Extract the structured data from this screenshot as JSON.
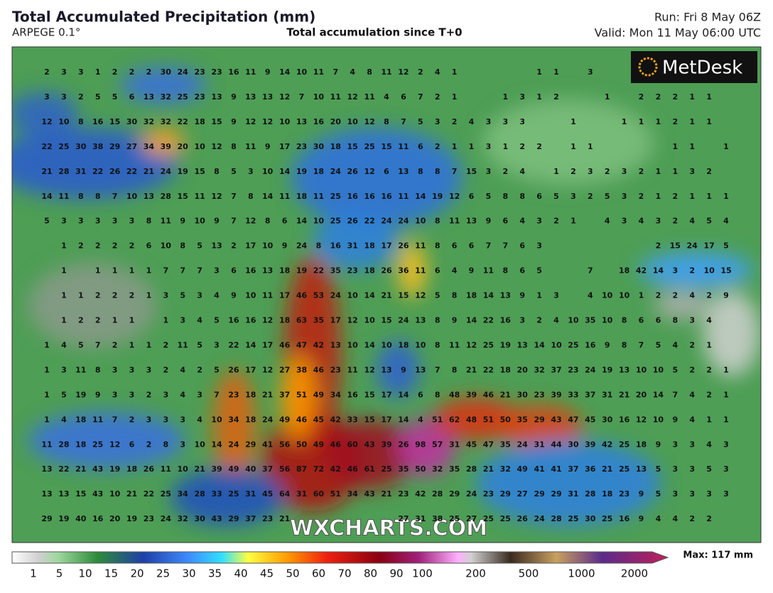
{
  "header": {
    "title": "Total Accumulated Precipitation (mm)",
    "model": "ARPEGE 0.1°",
    "subtitle": "Total accumulation since T+0",
    "run": "Run: Fri 8 May 06Z",
    "valid": "Valid: Mon 11 May 06:00 UTC"
  },
  "logo": "MetDesk",
  "watermark": "WXCHARTS.COM",
  "grid": {
    "rows": [
      [
        2,
        3,
        3,
        1,
        2,
        2,
        2,
        30,
        24,
        23,
        23,
        16,
        11,
        9,
        14,
        10,
        11,
        7,
        4,
        8,
        11,
        12,
        2,
        4,
        1,
        null,
        null,
        null,
        null,
        1,
        1,
        null,
        3,
        null,
        null,
        null,
        null,
        null,
        null,
        null,
        null
      ],
      [
        3,
        3,
        2,
        5,
        5,
        6,
        13,
        32,
        25,
        23,
        13,
        9,
        13,
        13,
        12,
        7,
        10,
        11,
        12,
        11,
        4,
        6,
        7,
        2,
        1,
        null,
        null,
        1,
        3,
        1,
        2,
        null,
        null,
        1,
        null,
        2,
        2,
        2,
        1,
        1,
        null
      ],
      [
        12,
        10,
        8,
        16,
        15,
        30,
        32,
        32,
        22,
        18,
        15,
        9,
        12,
        12,
        10,
        13,
        16,
        20,
        10,
        12,
        8,
        7,
        5,
        3,
        2,
        4,
        3,
        3,
        3,
        null,
        null,
        1,
        null,
        null,
        1,
        1,
        1,
        2,
        1,
        1,
        null
      ],
      [
        22,
        25,
        30,
        38,
        29,
        27,
        34,
        39,
        20,
        10,
        12,
        8,
        11,
        9,
        17,
        23,
        30,
        18,
        15,
        25,
        15,
        11,
        6,
        2,
        1,
        1,
        3,
        1,
        2,
        2,
        null,
        1,
        1,
        null,
        null,
        null,
        null,
        1,
        1,
        null,
        1
      ],
      [
        21,
        28,
        31,
        22,
        26,
        22,
        21,
        24,
        19,
        15,
        8,
        5,
        3,
        10,
        14,
        19,
        18,
        24,
        26,
        12,
        6,
        13,
        8,
        8,
        7,
        15,
        3,
        2,
        4,
        null,
        1,
        2,
        3,
        2,
        3,
        2,
        1,
        1,
        3,
        2,
        null
      ],
      [
        14,
        11,
        8,
        8,
        7,
        10,
        13,
        28,
        15,
        11,
        12,
        7,
        8,
        14,
        11,
        18,
        11,
        25,
        16,
        16,
        16,
        11,
        14,
        19,
        12,
        6,
        5,
        8,
        8,
        6,
        5,
        3,
        2,
        5,
        3,
        2,
        1,
        2,
        1,
        1,
        1
      ],
      [
        5,
        3,
        3,
        3,
        3,
        3,
        8,
        11,
        9,
        10,
        9,
        7,
        12,
        8,
        6,
        14,
        10,
        25,
        26,
        22,
        24,
        24,
        10,
        8,
        11,
        13,
        9,
        6,
        4,
        3,
        2,
        1,
        null,
        4,
        3,
        4,
        3,
        2,
        4,
        5,
        4
      ],
      [
        null,
        1,
        2,
        2,
        2,
        2,
        6,
        10,
        8,
        5,
        13,
        2,
        17,
        10,
        9,
        24,
        8,
        16,
        31,
        18,
        17,
        26,
        11,
        8,
        6,
        6,
        7,
        7,
        6,
        3,
        null,
        null,
        null,
        null,
        null,
        null,
        2,
        15,
        24,
        17,
        5
      ],
      [
        null,
        1,
        null,
        1,
        1,
        1,
        1,
        7,
        7,
        7,
        3,
        6,
        16,
        13,
        18,
        19,
        22,
        35,
        23,
        18,
        26,
        36,
        11,
        6,
        4,
        9,
        11,
        8,
        6,
        5,
        null,
        null,
        7,
        null,
        18,
        42,
        14,
        3,
        2,
        10,
        15
      ],
      [
        null,
        1,
        1,
        2,
        2,
        2,
        1,
        3,
        5,
        3,
        4,
        9,
        10,
        11,
        17,
        46,
        53,
        24,
        10,
        14,
        21,
        15,
        12,
        5,
        8,
        18,
        14,
        13,
        9,
        1,
        3,
        null,
        4,
        10,
        10,
        1,
        2,
        2,
        4,
        2,
        9
      ],
      [
        null,
        1,
        2,
        2,
        1,
        1,
        null,
        1,
        3,
        4,
        5,
        16,
        16,
        12,
        18,
        63,
        35,
        17,
        12,
        10,
        15,
        24,
        13,
        8,
        9,
        14,
        22,
        16,
        3,
        2,
        4,
        10,
        35,
        10,
        8,
        6,
        6,
        8,
        3,
        4,
        null
      ],
      [
        1,
        4,
        5,
        7,
        2,
        1,
        1,
        2,
        11,
        5,
        3,
        22,
        14,
        17,
        46,
        47,
        42,
        13,
        10,
        14,
        10,
        18,
        10,
        8,
        11,
        12,
        25,
        19,
        13,
        14,
        10,
        25,
        16,
        9,
        8,
        7,
        5,
        4,
        2,
        1,
        null
      ],
      [
        1,
        3,
        11,
        8,
        3,
        3,
        3,
        2,
        4,
        2,
        5,
        26,
        17,
        12,
        27,
        38,
        46,
        23,
        11,
        12,
        13,
        9,
        13,
        7,
        8,
        21,
        22,
        18,
        20,
        32,
        37,
        23,
        24,
        19,
        13,
        10,
        10,
        5,
        2,
        2,
        1
      ],
      [
        1,
        5,
        19,
        9,
        3,
        3,
        2,
        3,
        4,
        3,
        7,
        23,
        18,
        21,
        37,
        51,
        49,
        34,
        16,
        15,
        17,
        14,
        6,
        8,
        48,
        39,
        46,
        21,
        30,
        23,
        39,
        33,
        37,
        31,
        21,
        20,
        14,
        7,
        4,
        2,
        1
      ],
      [
        1,
        4,
        18,
        11,
        7,
        2,
        3,
        3,
        3,
        4,
        10,
        34,
        18,
        24,
        49,
        46,
        45,
        42,
        33,
        15,
        17,
        14,
        4,
        51,
        62,
        48,
        51,
        50,
        35,
        29,
        43,
        47,
        45,
        30,
        16,
        12,
        10,
        9,
        4,
        1,
        1
      ],
      [
        11,
        28,
        18,
        25,
        12,
        6,
        2,
        8,
        3,
        10,
        14,
        24,
        29,
        41,
        56,
        50,
        49,
        46,
        60,
        43,
        39,
        26,
        98,
        57,
        31,
        45,
        47,
        35,
        24,
        31,
        44,
        30,
        39,
        42,
        25,
        18,
        9,
        3,
        3,
        4,
        3
      ],
      [
        13,
        22,
        21,
        43,
        19,
        18,
        26,
        11,
        10,
        21,
        39,
        49,
        40,
        37,
        56,
        87,
        72,
        42,
        46,
        61,
        25,
        35,
        50,
        32,
        35,
        28,
        21,
        32,
        49,
        41,
        41,
        37,
        36,
        21,
        25,
        13,
        5,
        3,
        3,
        5,
        3
      ],
      [
        13,
        13,
        15,
        43,
        10,
        21,
        22,
        25,
        34,
        28,
        33,
        25,
        31,
        45,
        64,
        31,
        60,
        51,
        34,
        43,
        21,
        23,
        42,
        28,
        29,
        24,
        23,
        29,
        27,
        29,
        29,
        31,
        28,
        18,
        23,
        9,
        5,
        3,
        3,
        3,
        3
      ],
      [
        29,
        19,
        40,
        16,
        20,
        19,
        23,
        24,
        32,
        30,
        43,
        29,
        37,
        23,
        21,
        null,
        null,
        null,
        null,
        null,
        null,
        27,
        31,
        38,
        25,
        27,
        25,
        25,
        26,
        24,
        28,
        25,
        30,
        25,
        16,
        9,
        4,
        4,
        2,
        2,
        null
      ]
    ]
  },
  "colorbar": {
    "ticks": [
      1,
      5,
      10,
      15,
      20,
      25,
      30,
      35,
      40,
      45,
      50,
      60,
      70,
      80,
      90,
      100,
      200,
      500,
      1000,
      2000
    ],
    "max_label": "Max: 117 mm"
  }
}
